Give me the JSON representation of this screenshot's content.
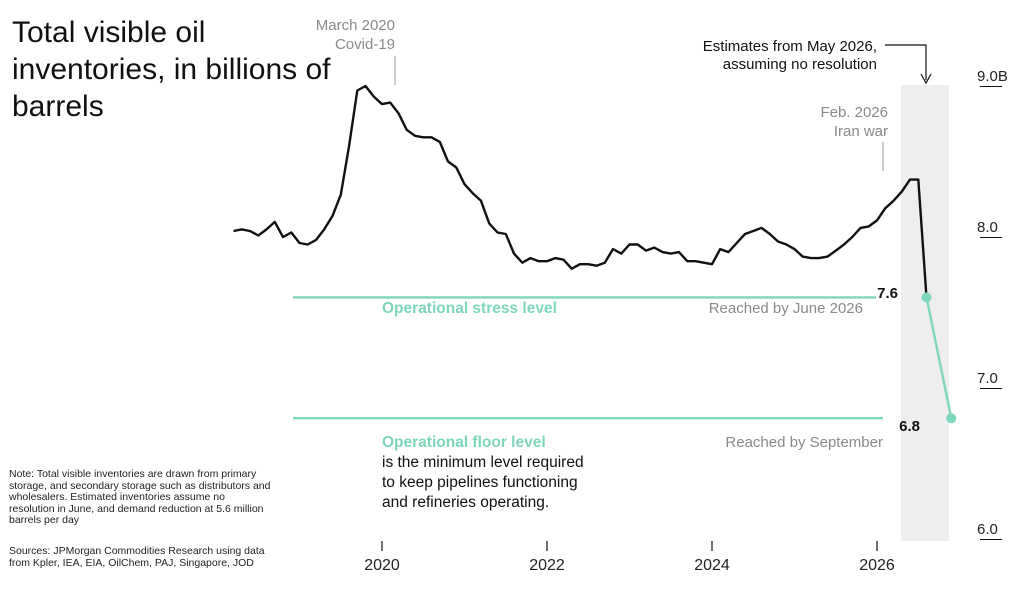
{
  "title": "Total visible oil inventories, in billions of barrels",
  "note": "Note: Total visible inventories are drawn from primary storage, and secondary storage such as distributors and wholesalers. Estimated inventories assume no resolution in June, and demand reduction at 5.6 million barrels per day",
  "sources": "Sources: JPMorgan Commodities Research using data from Kpler, IEA, EIA, OilChem, PAJ, Singapore, JOD",
  "colors": {
    "line": "#111111",
    "estimate": "#7ed6bd",
    "level": "#7ed6bd",
    "shade": "#eeeeee"
  },
  "chart_data": {
    "type": "line",
    "title": "Total visible oil inventories, in billions of barrels",
    "xlabel": "",
    "ylabel": "",
    "xlim": [
      2018.2,
      2026.9
    ],
    "ylim": [
      6.0,
      9.0
    ],
    "x_ticks": [
      "2020",
      "2022",
      "2024",
      "2026"
    ],
    "y_ticks": [
      "6.0",
      "7.0",
      "8.0",
      "9.0B"
    ],
    "series": [
      {
        "style": "historical",
        "x": [
          2018.2,
          2018.3,
          2018.4,
          2018.5,
          2018.6,
          2018.7,
          2018.8,
          2018.9,
          2019.0,
          2019.1,
          2019.2,
          2019.3,
          2019.4,
          2019.5,
          2019.6,
          2019.7,
          2019.8,
          2019.9,
          2020.0,
          2020.1,
          2020.2,
          2020.3,
          2020.4,
          2020.5,
          2020.6,
          2020.7,
          2020.8,
          2020.9,
          2021.0,
          2021.1,
          2021.2,
          2021.3,
          2021.4,
          2021.5,
          2021.6,
          2021.7,
          2021.8,
          2021.9,
          2022.0,
          2022.1,
          2022.2,
          2022.3,
          2022.4,
          2022.5,
          2022.6,
          2022.7,
          2022.8,
          2022.9,
          2023.0,
          2023.1,
          2023.2,
          2023.3,
          2023.4,
          2023.5,
          2023.6,
          2023.7,
          2023.8,
          2023.9,
          2024.0,
          2024.1,
          2024.2,
          2024.3,
          2024.4,
          2024.5,
          2024.6,
          2024.7,
          2024.8,
          2024.9,
          2025.0,
          2025.1,
          2025.2,
          2025.3,
          2025.4,
          2025.5,
          2025.6,
          2025.7,
          2025.8,
          2025.9,
          2026.0,
          2026.1,
          2026.2,
          2026.3,
          2026.4,
          2026.5
        ],
        "y": [
          8.04,
          8.05,
          8.04,
          8.01,
          8.05,
          8.1,
          8.0,
          8.03,
          7.96,
          7.95,
          7.98,
          8.05,
          8.14,
          8.28,
          8.6,
          8.97,
          9.0,
          8.93,
          8.88,
          8.89,
          8.82,
          8.71,
          8.67,
          8.66,
          8.66,
          8.63,
          8.5,
          8.46,
          8.35,
          8.29,
          8.24,
          8.09,
          8.03,
          8.02,
          7.89,
          7.83,
          7.86,
          7.84,
          7.84,
          7.86,
          7.85,
          7.79,
          7.82,
          7.82,
          7.81,
          7.83,
          7.92,
          7.89,
          7.95,
          7.95,
          7.91,
          7.93,
          7.9,
          7.89,
          7.9,
          7.84,
          7.84,
          7.83,
          7.82,
          7.92,
          7.9,
          7.96,
          8.02,
          8.04,
          8.06,
          8.02,
          7.97,
          7.95,
          7.92,
          7.87,
          7.86,
          7.86,
          7.87,
          7.91,
          7.95,
          8.0,
          8.06,
          8.07,
          8.11,
          8.19,
          8.24,
          8.3,
          8.38,
          8.38
        ]
      },
      {
        "style": "estimate",
        "x": [
          2026.5,
          2026.6,
          2026.9
        ],
        "y": [
          8.38,
          7.6,
          6.8
        ]
      }
    ],
    "levels": [
      {
        "name": "Operational stress level",
        "value": 7.6,
        "value_label": "7.6",
        "reached": "Reached by June 2026"
      },
      {
        "name": "Operational floor level",
        "value": 6.8,
        "value_label": "6.8",
        "reached": "Reached by September",
        "description": [
          "is the minimum level required",
          "to keep pipelines functioning",
          "and refineries operating."
        ]
      }
    ],
    "annotations": {
      "covid": [
        "March 2020",
        "Covid-19"
      ],
      "iran": [
        "Feb. 2026",
        "Iran war"
      ],
      "estimate": [
        "Estimates from May 2026,",
        "assuming no resolution"
      ]
    }
  }
}
